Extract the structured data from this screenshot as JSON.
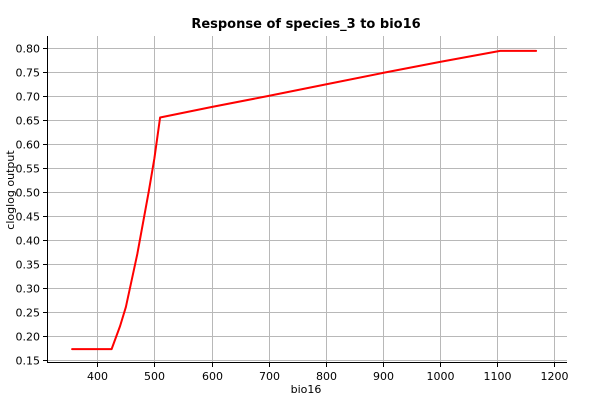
{
  "chart_data": {
    "type": "line",
    "title": "Response of species_3 to bio16",
    "xlabel": "bio16",
    "ylabel": "cloglog output",
    "xlim": [
      312,
      1222
    ],
    "ylim": [
      0.145,
      0.825
    ],
    "xticks": [
      400,
      500,
      600,
      700,
      800,
      900,
      1000,
      1100,
      1200
    ],
    "yticks": [
      0.15,
      0.2,
      0.25,
      0.3,
      0.35,
      0.4,
      0.45,
      0.5,
      0.55,
      0.6,
      0.65,
      0.7,
      0.75,
      0.8
    ],
    "grid": true,
    "series": [
      {
        "color": "#ff0000",
        "x": [
          356,
          425,
          440,
          450,
          470,
          490,
          500,
          510,
          600,
          700,
          800,
          900,
          1000,
          1105,
          1168
        ],
        "y": [
          0.172,
          0.172,
          0.22,
          0.26,
          0.37,
          0.5,
          0.57,
          0.655,
          0.677,
          0.7,
          0.724,
          0.748,
          0.771,
          0.794,
          0.794
        ]
      }
    ]
  }
}
